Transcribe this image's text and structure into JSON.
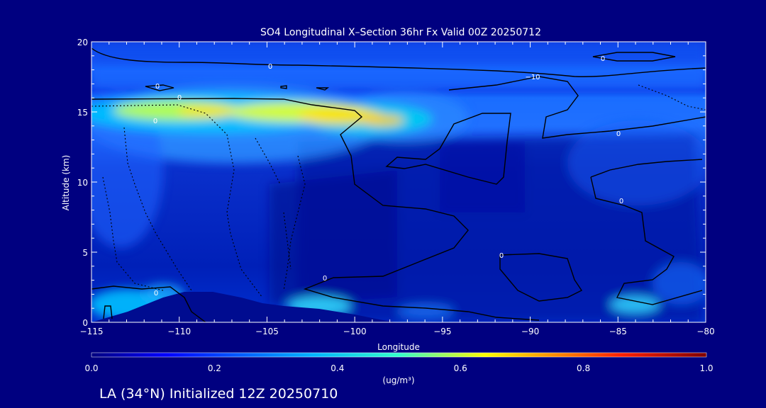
{
  "chart_data": {
    "type": "heatmap",
    "title": "SO4 Longitudinal X–Section 36hr  Fx Valid 00Z 20250712",
    "xlabel": "Longitude",
    "ylabel": "Altitude (km)",
    "xlim": [
      -115,
      -80
    ],
    "ylim": [
      0,
      20
    ],
    "x_ticks": [
      "−115",
      "−110",
      "−105",
      "−100",
      "−95",
      "−90",
      "−85",
      "−80"
    ],
    "x_tick_values": [
      -115,
      -110,
      -105,
      -100,
      -95,
      -90,
      -85,
      -80
    ],
    "y_ticks": [
      "0",
      "5",
      "10",
      "15",
      "20"
    ],
    "y_tick_values": [
      0,
      5,
      10,
      15,
      20
    ],
    "colorbar": {
      "label": "(ug/m³)",
      "range": [
        0.0,
        1.0
      ],
      "ticks": [
        "0.0",
        "0.2",
        "0.4",
        "0.6",
        "0.8",
        "1.0"
      ],
      "tick_values": [
        0.0,
        0.2,
        0.4,
        0.6,
        0.8,
        1.0
      ]
    },
    "contour_labels": [
      "0",
      "0",
      "0",
      "0",
      "−10",
      "0",
      "0",
      "0",
      "0",
      "0",
      "0"
    ],
    "field_features": [
      {
        "lon": -103.5,
        "alt": 15.0,
        "value": 0.58
      },
      {
        "lon": -99.5,
        "alt": 14.5,
        "value": 0.62
      },
      {
        "lon": -108.5,
        "alt": 15.0,
        "value": 0.55
      },
      {
        "lon": -113.5,
        "alt": 15.0,
        "value": 0.45
      },
      {
        "lon": -103.0,
        "alt": 1.2,
        "value": 0.35
      },
      {
        "lon": -113.0,
        "alt": 1.0,
        "value": 0.3
      },
      {
        "lon": -84.5,
        "alt": 1.3,
        "value": 0.32
      }
    ],
    "terrain_peak": {
      "lon": -108.5,
      "alt": 2.1
    }
  },
  "footer": {
    "caption": "LA (34°N) Initialized 12Z 20250710"
  }
}
